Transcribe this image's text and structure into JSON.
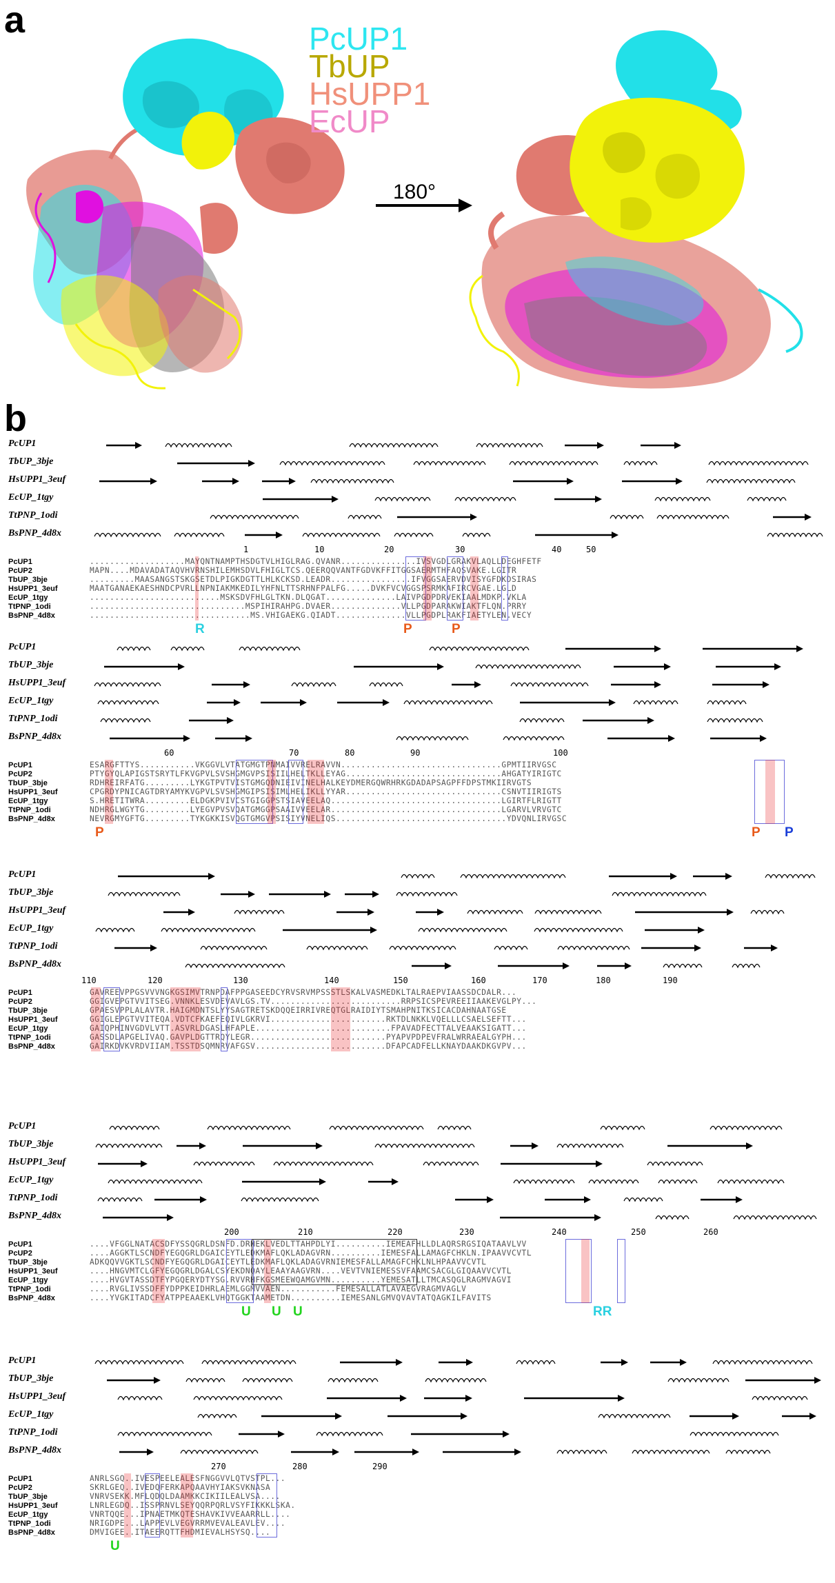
{
  "panel_a": {
    "label": "a",
    "legend": [
      {
        "name": "PcUP1",
        "color": "#2ee6f0"
      },
      {
        "name": "TbUP",
        "color": "#b8a800"
      },
      {
        "name": "HsUPP1",
        "color": "#f0907a"
      },
      {
        "name": "EcUP",
        "color": "#f08ac8"
      }
    ],
    "rotation_label": "180°",
    "colors": {
      "cyan": "#22e0e8",
      "yellow": "#f2f20a",
      "salmon": "#e07a70",
      "magenta": "#e010e0",
      "grey": "#7a7a7a"
    }
  },
  "panel_b": {
    "label": "b",
    "structure_names": [
      "PcUP1",
      "TbUP_3bje",
      "HsUPP1_3euf",
      "EcUP_1tgy",
      "TtPNP_1odi",
      "BsPNP_4d8x"
    ],
    "blocks": [
      {
        "numbers": [
          {
            "t": "1"
          },
          {
            "t": "10"
          },
          {
            "t": "20"
          },
          {
            "t": "30"
          },
          {
            "t": "40"
          },
          {
            "t": "50"
          }
        ],
        "sequences": [
          {
            "name": "PcUP1",
            "seq": "...................MAYQNTNAMPTHSDGTVLHIGLRAG.QVANR...............IVSVGDLGRAKVLAQLLDEGHFETF"
          },
          {
            "name": "PcUP2",
            "seq": "MAPN....MDAVADATAQVHVRNSHILEMHSDVLFHIGLTCS.QEERQQVANTFGDVKFFITGGSAERMTHFAQSVAKE.LGITR"
          },
          {
            "name": "TbUP_3bje",
            "seq": ".........MAASANGSTSKGSETDLPIGKDGTTLHLKCKSD.LEADR................IFVGGSAERVDVISYGFDKDSIRAS"
          },
          {
            "name": "HsUPP1_3euf",
            "seq": "MAATGANAEKAESHNDCPVRLLNPNIAKMKEDILYHFNLTTSRHNFPALFG.....DVKFVCVGGSPSRMKAFIRCVGAE.LGLD"
          },
          {
            "name": "EcUP_1tgy",
            "seq": "..........................MSKSDVFHLGLTKN.DLQGAT..............LAIVPGDPDRVEKIAALMDKP.VKLA"
          },
          {
            "name": "TtPNP_1odi",
            "seq": "...............................MSPIHIRAHPG.DVAER..............VLLPGDPARAKWIAKTFLQN.PRRY"
          },
          {
            "name": "BsPNP_4d8x",
            "seq": "................................MS.VHIGAEKG.QIADT..............VLLPGDPLRAKFIAETYLEN.VECY"
          }
        ],
        "marks": [
          {
            "t": "R",
            "color": "#2ad0e0"
          },
          {
            "t": "P",
            "color": "#e85a1a"
          },
          {
            "t": "P",
            "color": "#e85a1a"
          }
        ]
      },
      {
        "numbers": [
          {
            "t": "60"
          },
          {
            "t": "70"
          },
          {
            "t": "80"
          },
          {
            "t": "90"
          },
          {
            "t": "100"
          }
        ],
        "sequences": [
          {
            "name": "PcUP1",
            "seq": "ESARGFTTYS...........VKGGVLVTATGMGTPNMAIVVRELRAVVN................................GPMTIIRVGSC"
          },
          {
            "name": "PcUP2",
            "seq": "PTYGYQLAPIGSTSRYTLFKVGPVLSVSHGMGVPSISIILHELTKLLEYAG...............................AHGATYIRIGTC"
          },
          {
            "name": "TbUP_3bje",
            "seq": "RDHREIRFATG.........LYKGTPVTVISTGMGQDNIEIVINELHALKEYDMERGQWRHRKGDADAPSAGPFFDPSTMKIIRVGTS"
          },
          {
            "name": "HsUPP1_3euf",
            "seq": "CPGRDYPNICAGTDRYAMYKVGPVLSVSHGMGIPSISIMLHELIKLLYYAR...............................CSNVTIIRIGTS"
          },
          {
            "name": "EcUP_1tgy",
            "seq": "S.HRETITWRA.........ELDGKPVIVCSTGIGGPSTSIAVEELAQ..................................LGIRTFLRIGTT"
          },
          {
            "name": "TtPNP_1odi",
            "seq": "NDHRGLWGYTG.........LYEGVPVSVQATGMGGPSAAIVVEELAR..................................LGARVLVRVGTC"
          },
          {
            "name": "BsPNP_4d8x",
            "seq": "NEVRGMYGFTG.........TYKGKKISVQGTGMGVPSISIYVNELIQS..................................YDVQNLIRVGSC"
          }
        ],
        "marks": [
          {
            "t": "P",
            "color": "#e85a1a"
          },
          {
            "t": "P",
            "color": "#e85a1a"
          },
          {
            "t": "P",
            "color": "#1a3ed8"
          }
        ]
      },
      {
        "numbers": [
          {
            "t": "110"
          },
          {
            "t": "120"
          },
          {
            "t": "130"
          },
          {
            "t": "140"
          },
          {
            "t": "150"
          },
          {
            "t": "160"
          },
          {
            "t": "170"
          },
          {
            "t": "180"
          },
          {
            "t": "190"
          }
        ],
        "sequences": [
          {
            "name": "PcUP1",
            "seq": "GAVREEVPPGSVVVNGKGSIMVTRNPDAFPPGASEEDCYRVSRVMPSSSTLSKALVASMEDKLTALRAEPVIAASSDCDALR..."
          },
          {
            "name": "PcUP2",
            "seq": "GGIGVEPGTVVITSEG.VNNKLESVDEVAVLGS.TV..........................RRPSICSPEVREEIIAAKEVGLPY..."
          },
          {
            "name": "TbUP_3bje",
            "seq": "GPAESVPPLALAVTR.HAIGMDNTSLYYSAGTRETSKDQQEIRRIVREQTGLRAIDIYTSMAHPNITKSICACDAHNAATGSE"
          },
          {
            "name": "HsUPP1_3euf",
            "seq": "GGIGLEPGTVVITEQA.VDTCFKAEFEQIVLGKRVI.......................RKTDLNKKLVQELLLCSAELSEFTT..."
          },
          {
            "name": "EcUP_1tgy",
            "seq": "GAIQPHINVGDVLVTT.ASVRLDGASLHFAPLE...........................FPAVADFECTTALVEAAKSIGATT..."
          },
          {
            "name": "TtPNP_1odi",
            "seq": "GASSDLAPGELIVAQ.GAVPLDGTTRQYLEGR...........................PYAPVPDPEVFRALWRRAEALGYPH..."
          },
          {
            "name": "BsPNP_4d8x",
            "seq": "GAIRKDVKVRDVIIAM.TSSTDSQMNRVAFGSV..........................DFAPCADFELLKNAYDAAKDKGVPV..."
          }
        ],
        "marks": []
      },
      {
        "numbers": [
          {
            "t": "200"
          },
          {
            "t": "210"
          },
          {
            "t": "220"
          },
          {
            "t": "230"
          },
          {
            "t": "240"
          },
          {
            "t": "250"
          },
          {
            "t": "260"
          }
        ],
        "sequences": [
          {
            "name": "PcUP1",
            "seq": "....VFGGLNATACSDFYSSQGRLDSNFD.DRNEKLVEDLTTAHPDLYI..........IEMEAFHLLDLAQRSRGSIQATAAVLVV"
          },
          {
            "name": "PcUP2",
            "seq": "....AGGKTLSCNDFYEGQGRLDGAICEYTLEDKMAFLQKLADAGVRN..........IEMESFALLAMAGFCHKLN.IPAAVVCVTL"
          },
          {
            "name": "TbUP_3bje",
            "seq": "ADKQQVVGKTLSCNDFYEGQGRLDGAICEYTLEDKMAFLQKLADAGVRNIEMESFALLAMAGFCHKLNLHPAAVVCVTL"
          },
          {
            "name": "HsUPP1_3euf",
            "seq": "....HNGVMTCLGFYEGQGRLDGALCSYEKDNQAYLEAAYAAGVRN....VEVTVNIEMESSVFAAMCSACGLGIQAAVVCVTL"
          },
          {
            "name": "EcUP_1tgy",
            "seq": "....HVGVTASSDTFYPGQERYDTYSG.RVVRHFKGSMEEWQAMGVMN..........YEMESATLLTMCASQGLRAGMVAGVI"
          },
          {
            "name": "TtPNP_1odi",
            "seq": "....RVGLIVSSDFFYDPPKEIDHRLAEMLGGMVVAEN...........FEMESALLATLAVAEGVRAGMVAGLV"
          },
          {
            "name": "BsPNP_4d8x",
            "seq": "....YVGKITADCFYATPPEAAEKLVHQTGGKTAAMETDN..........IEMESANLGMVQVAVTATQAGKILFAVITS"
          }
        ],
        "marks": [
          {
            "t": "U",
            "color": "#22d41e"
          },
          {
            "t": "U",
            "color": "#22d41e"
          },
          {
            "t": "U",
            "color": "#22d41e"
          },
          {
            "t": "RR",
            "color": "#2ad0e0"
          }
        ]
      },
      {
        "numbers": [
          {
            "t": "270"
          },
          {
            "t": "280"
          },
          {
            "t": "290"
          }
        ],
        "sequences": [
          {
            "name": "PcUP1",
            "seq": "ANRLSGQ..IVESPEELEALESFNGGVVLQTVSTPL..."
          },
          {
            "name": "PcUP2",
            "seq": "SKRLGEQ..IVEDQFERKAPQAAVHYIAKSVKNASA"
          },
          {
            "name": "TbUP_3bje",
            "seq": "VNRVSEKK.MFLQDQLDAAMKKCIKIILEALVSA...."
          },
          {
            "name": "HsUPP1_3euf",
            "seq": "LNRLEGDQ..ISSPRNVLSEYQQRPQRLVSYFIKKKLSKA."
          },
          {
            "name": "EcUP_1tgy",
            "seq": "VNRTQQE...IPNAETMKQTESHAVKIVVEAARRLL...."
          },
          {
            "name": "TtPNP_1odi",
            "seq": "NRIGDPE...LAPPEVLVEGVRRMVEVALEAVLEV...."
          },
          {
            "name": "BsPNP_4d8x",
            "seq": "DMVIGEE..ITAEERQTTFHDMIEVALHSYSQ...."
          }
        ],
        "marks": [
          {
            "t": "U",
            "color": "#22d41e"
          }
        ]
      }
    ]
  }
}
